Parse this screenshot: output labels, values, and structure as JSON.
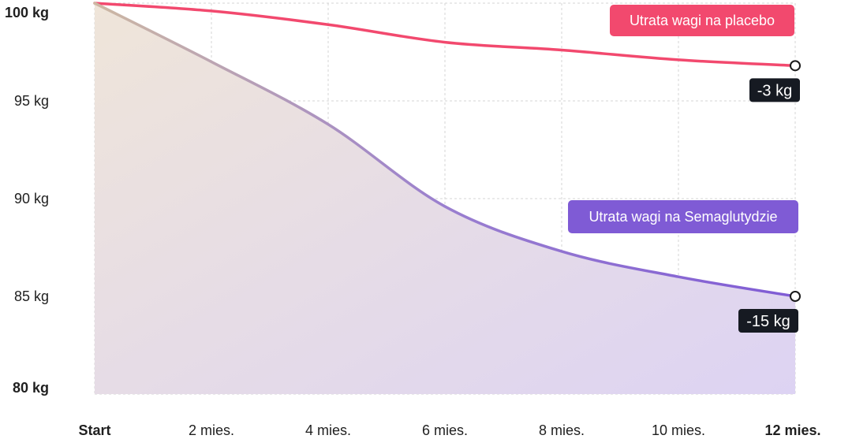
{
  "chart_data": {
    "type": "line",
    "x": [
      "Start",
      "2 mies.",
      "4 mies.",
      "6 mies.",
      "8 mies.",
      "10 mies.",
      "12 mies."
    ],
    "y_ticks": [
      "100 kg",
      "95 kg",
      "90 kg",
      "85 kg",
      "80 kg"
    ],
    "ylim": [
      80,
      100
    ],
    "grid": true,
    "series": [
      {
        "name": "Utrata wagi na placebo",
        "color": "#f2496e",
        "x": [
          0,
          1,
          2,
          3,
          4,
          5,
          6
        ],
        "values": [
          100,
          99.6,
          98.9,
          98.0,
          97.6,
          97.1,
          96.8
        ],
        "end_label": "-3 kg"
      },
      {
        "name": "Utrata wagi na Semaglutydzie",
        "color": "#7f5bd5",
        "x": [
          0,
          1,
          2,
          3,
          4,
          5,
          6
        ],
        "values": [
          100,
          97.0,
          93.8,
          89.6,
          87.3,
          86.0,
          85.0
        ],
        "end_label": "-15 kg"
      }
    ]
  }
}
